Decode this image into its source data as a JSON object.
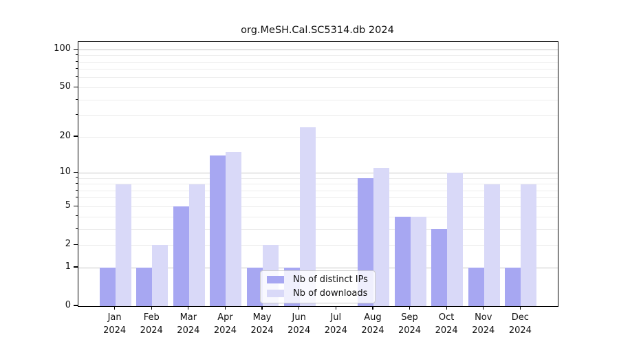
{
  "chart_data": {
    "type": "bar",
    "title": "org.MeSH.Cal.SC5314.db 2024",
    "year_label": "2024",
    "categories": [
      "Jan",
      "Feb",
      "Mar",
      "Apr",
      "May",
      "Jun",
      "Jul",
      "Aug",
      "Sep",
      "Oct",
      "Nov",
      "Dec"
    ],
    "series": [
      {
        "name": "Nb of distinct IPs",
        "color": "#a7a7f2",
        "values": [
          1,
          1,
          5,
          14,
          1,
          1,
          0,
          9,
          4,
          3,
          1,
          1
        ]
      },
      {
        "name": "Nb of downloads",
        "color": "#d9d9f8",
        "values": [
          8,
          2,
          8,
          15,
          2,
          24,
          0,
          11,
          4,
          10,
          8,
          8
        ]
      }
    ],
    "xlabel": "",
    "ylabel": "",
    "y_axis": {
      "scale": "log1p",
      "max_value": 115,
      "labeled_ticks": [
        0,
        1,
        2,
        5,
        10,
        20,
        50,
        100
      ],
      "minor_ticks": [
        3,
        4,
        6,
        7,
        8,
        9,
        30,
        40,
        60,
        70,
        80,
        90
      ],
      "major_gridlines": [
        1,
        10,
        100
      ],
      "minor_gridlines": [
        2,
        3,
        4,
        5,
        6,
        7,
        8,
        9,
        20,
        30,
        40,
        50,
        60,
        70,
        80,
        90
      ]
    },
    "grid": "horizontal",
    "legend_position": "lower-center-left",
    "colors": {
      "major_grid": "#c6c6c6",
      "minor_grid": "#ececec",
      "spine": "#000000",
      "text": "#111111",
      "background": "#ffffff"
    }
  }
}
